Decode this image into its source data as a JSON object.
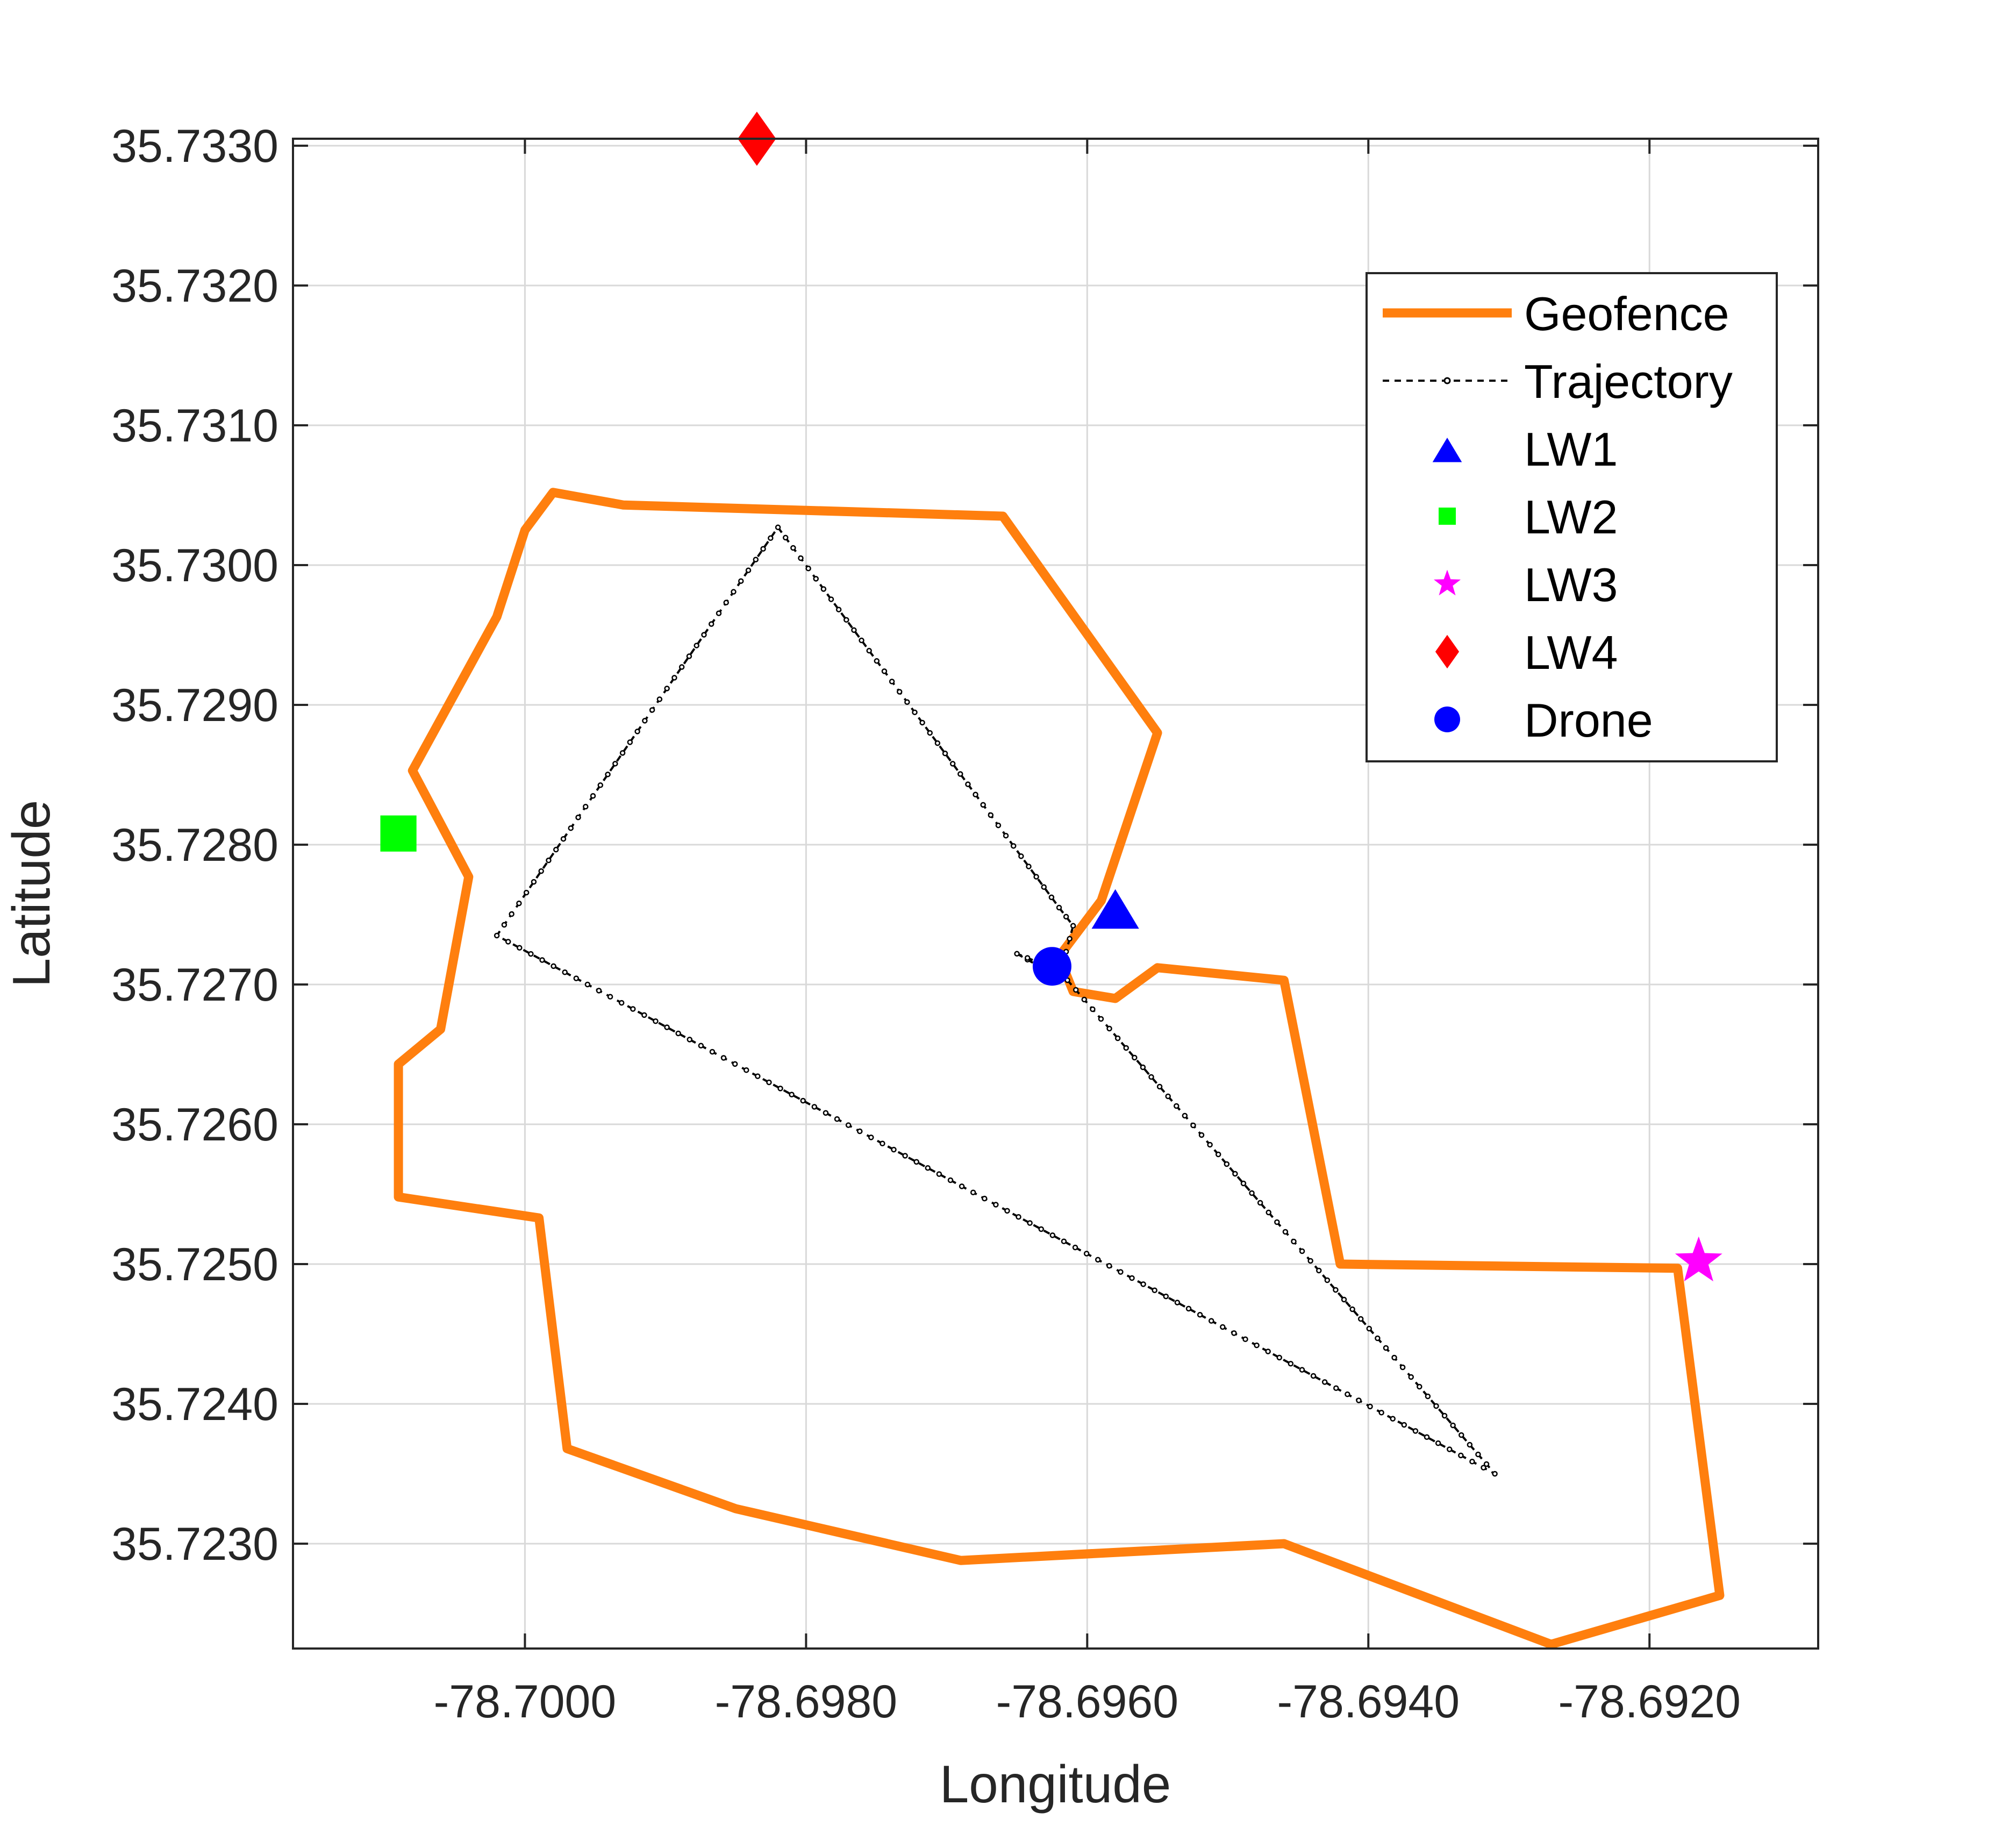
{
  "chart_data": {
    "type": "scatter",
    "xlabel": "Longitude",
    "ylabel": "Latitude",
    "xlim": [
      -78.70165,
      -78.6908
    ],
    "ylim": [
      35.72225,
      35.73305
    ],
    "xticks": [
      -78.7,
      -78.698,
      -78.696,
      -78.694,
      -78.692
    ],
    "xtick_labels": [
      "-78.7000",
      "-78.6980",
      "-78.6960",
      "-78.6940",
      "-78.6920"
    ],
    "yticks": [
      35.723,
      35.724,
      35.725,
      35.726,
      35.727,
      35.728,
      35.729,
      35.73,
      35.731,
      35.732,
      35.733
    ],
    "ytick_labels": [
      "35.7230",
      "35.7240",
      "35.7250",
      "35.7260",
      "35.7270",
      "35.7280",
      "35.7290",
      "35.7300",
      "35.7310",
      "35.7320",
      "35.7330"
    ],
    "grid": true,
    "legend_position": "top-right",
    "legend": [
      "Geofence",
      "Trajectory",
      "LW1",
      "LW2",
      "LW3",
      "LW4",
      "Drone"
    ],
    "colors": {
      "geofence": "#FF7F0E",
      "trajectory": "#000000",
      "lw1": "#0000FF",
      "lw2": "#00FF00",
      "lw3": "#FF00FF",
      "lw4": "#FF0000",
      "drone": "#0000FF"
    },
    "geofence": {
      "x": [
        -78.6955,
        -78.6959,
        -78.6962,
        -78.6961,
        -78.6958,
        -78.6955,
        -78.6946,
        -78.6942,
        -78.6918,
        -78.6915,
        -78.6927,
        -78.6946,
        -78.6969,
        -78.6985,
        -78.6997,
        -78.6999,
        -78.7009,
        -78.7009,
        -78.7006,
        -78.7004,
        -78.7008,
        -78.7002,
        -78.7,
        -78.6998,
        -78.6993,
        -78.6966,
        -78.6955
      ],
      "y": [
        35.7288,
        35.7276,
        35.7272,
        35.72695,
        35.7269,
        35.72712,
        35.72703,
        35.725,
        35.72497,
        35.72263,
        35.72228,
        35.723,
        35.72288,
        35.72325,
        35.72368,
        35.72533,
        35.72548,
        35.72643,
        35.72668,
        35.72777,
        35.72853,
        35.72963,
        35.73025,
        35.73052,
        35.73043,
        35.73035,
        35.7288
      ]
    },
    "trajectory": {
      "x": [
        -78.6965,
        -78.6962,
        -78.6961,
        -78.6962,
        -78.6982,
        -78.7002,
        -78.6931,
        -78.6962,
        -78.6965
      ],
      "y": [
        35.72722,
        35.72705,
        35.72742,
        35.72755,
        35.73027,
        35.72735,
        35.7235,
        35.7271,
        35.72722
      ]
    },
    "landmarks": [
      {
        "name": "LW1",
        "x": -78.6958,
        "y": 35.72752,
        "marker": "triangle"
      },
      {
        "name": "LW2",
        "x": -78.7009,
        "y": 35.72808,
        "marker": "square"
      },
      {
        "name": "LW3",
        "x": -78.69165,
        "y": 35.72502,
        "marker": "star"
      },
      {
        "name": "LW4",
        "x": -78.69835,
        "y": 35.73305,
        "marker": "diamond"
      }
    ],
    "drone": {
      "name": "Drone",
      "x": -78.69625,
      "y": 35.72713,
      "marker": "circle"
    }
  }
}
